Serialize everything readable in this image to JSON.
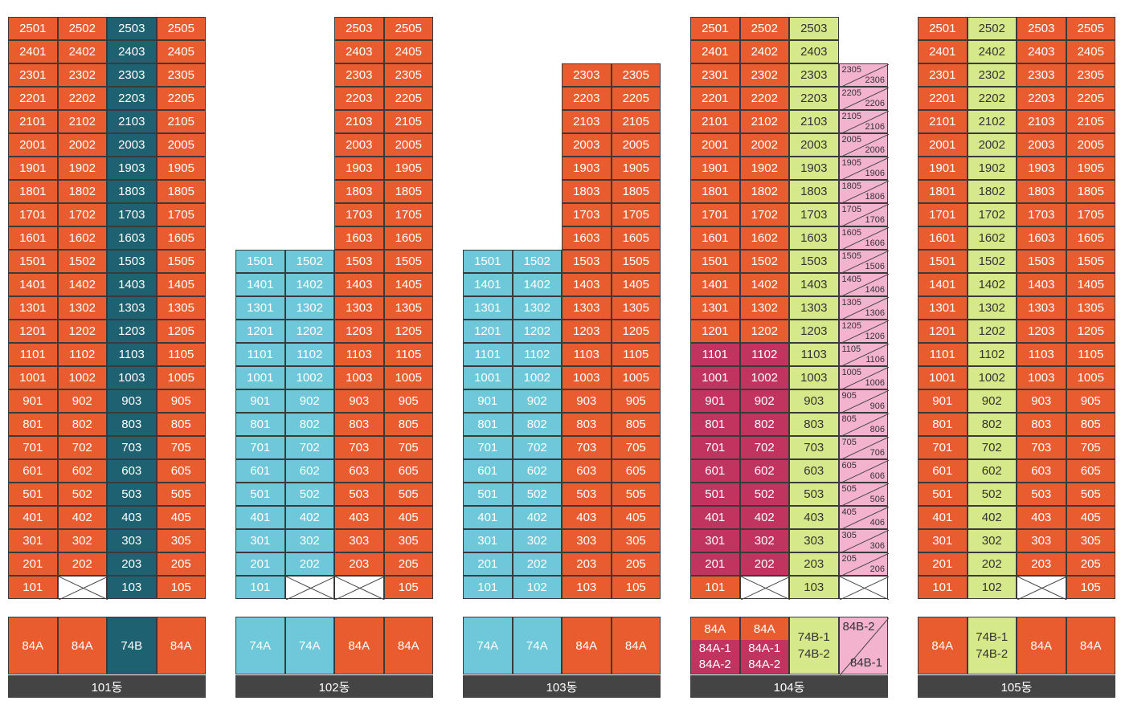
{
  "buildings": [
    {
      "label": "101동",
      "top_floor": 25,
      "unit_lines": [
        "01",
        "02",
        "03",
        "05"
      ],
      "line_colors": [
        "#e95c30",
        "#e95c30",
        "#1e6272",
        "#e95c30"
      ],
      "ground_floor": [
        "101",
        null,
        "103",
        "105"
      ],
      "types": [
        {
          "text": "84A",
          "color": "#e95c30"
        },
        {
          "text": "84A",
          "color": "#e95c30"
        },
        {
          "text": "74B",
          "color": "#1e6272"
        },
        {
          "text": "84A",
          "color": "#e95c30"
        }
      ]
    },
    {
      "label": "102동",
      "top_floor": 25,
      "low_top_floor": 15,
      "unit_lines": [
        "01",
        "02",
        "03",
        "05"
      ],
      "line_colors": [
        "#6ec8da",
        "#6ec8da",
        "#e95c30",
        "#e95c30"
      ],
      "ground_floor": [
        "101",
        null,
        null,
        "105"
      ],
      "types": [
        {
          "text": "74A",
          "color": "#6ec8da"
        },
        {
          "text": "74A",
          "color": "#6ec8da"
        },
        {
          "text": "84A",
          "color": "#e95c30"
        },
        {
          "text": "84A",
          "color": "#e95c30"
        }
      ]
    },
    {
      "label": "103동",
      "top_floor": 23,
      "low_top_floor": 15,
      "unit_lines": [
        "01",
        "02",
        "03",
        "05"
      ],
      "line_colors": [
        "#6ec8da",
        "#6ec8da",
        "#e95c30",
        "#e95c30"
      ],
      "ground_floor": [
        "101",
        "102",
        "103",
        "105"
      ],
      "types": [
        {
          "text": "74A",
          "color": "#6ec8da"
        },
        {
          "text": "74A",
          "color": "#6ec8da"
        },
        {
          "text": "84A",
          "color": "#e95c30"
        },
        {
          "text": "84A",
          "color": "#e95c30"
        }
      ]
    },
    {
      "label": "104동",
      "top_floor": 25,
      "split_top_floor": 23,
      "magenta_top_floor": 11,
      "unit_lines": [
        "01",
        "02",
        "03",
        "05/06"
      ],
      "line_colors": [
        "#e95c30",
        "#e95c30",
        "#d6e98a",
        "#f3b3cf"
      ],
      "ground_floor": [
        "101",
        null,
        "103",
        null
      ],
      "types": [
        {
          "lines": [
            "84A"
          ],
          "lower_lines": [
            "84A-1",
            "84A-2"
          ],
          "color": "#e95c30",
          "lower_color": "#c0345f"
        },
        {
          "lines": [
            "84A"
          ],
          "lower_lines": [
            "84A-1",
            "84A-2"
          ],
          "color": "#e95c30",
          "lower_color": "#c0345f"
        },
        {
          "lines": [
            "74B-1",
            "74B-2"
          ],
          "color": "#d6e98a"
        },
        {
          "split": [
            "84B-2",
            "84B-1"
          ],
          "color": "#f3b3cf"
        }
      ]
    },
    {
      "label": "105동",
      "top_floor": 25,
      "unit_lines": [
        "01",
        "02",
        "03",
        "05"
      ],
      "line_colors": [
        "#e95c30",
        "#d6e98a",
        "#e95c30",
        "#e95c30"
      ],
      "ground_floor": [
        "101",
        "102",
        null,
        "105"
      ],
      "types": [
        {
          "text": "84A",
          "color": "#e95c30"
        },
        {
          "lines": [
            "74B-1",
            "74B-2"
          ],
          "color": "#d6e98a"
        },
        {
          "text": "84A",
          "color": "#e95c30"
        },
        {
          "text": "84A",
          "color": "#e95c30"
        }
      ]
    }
  ]
}
